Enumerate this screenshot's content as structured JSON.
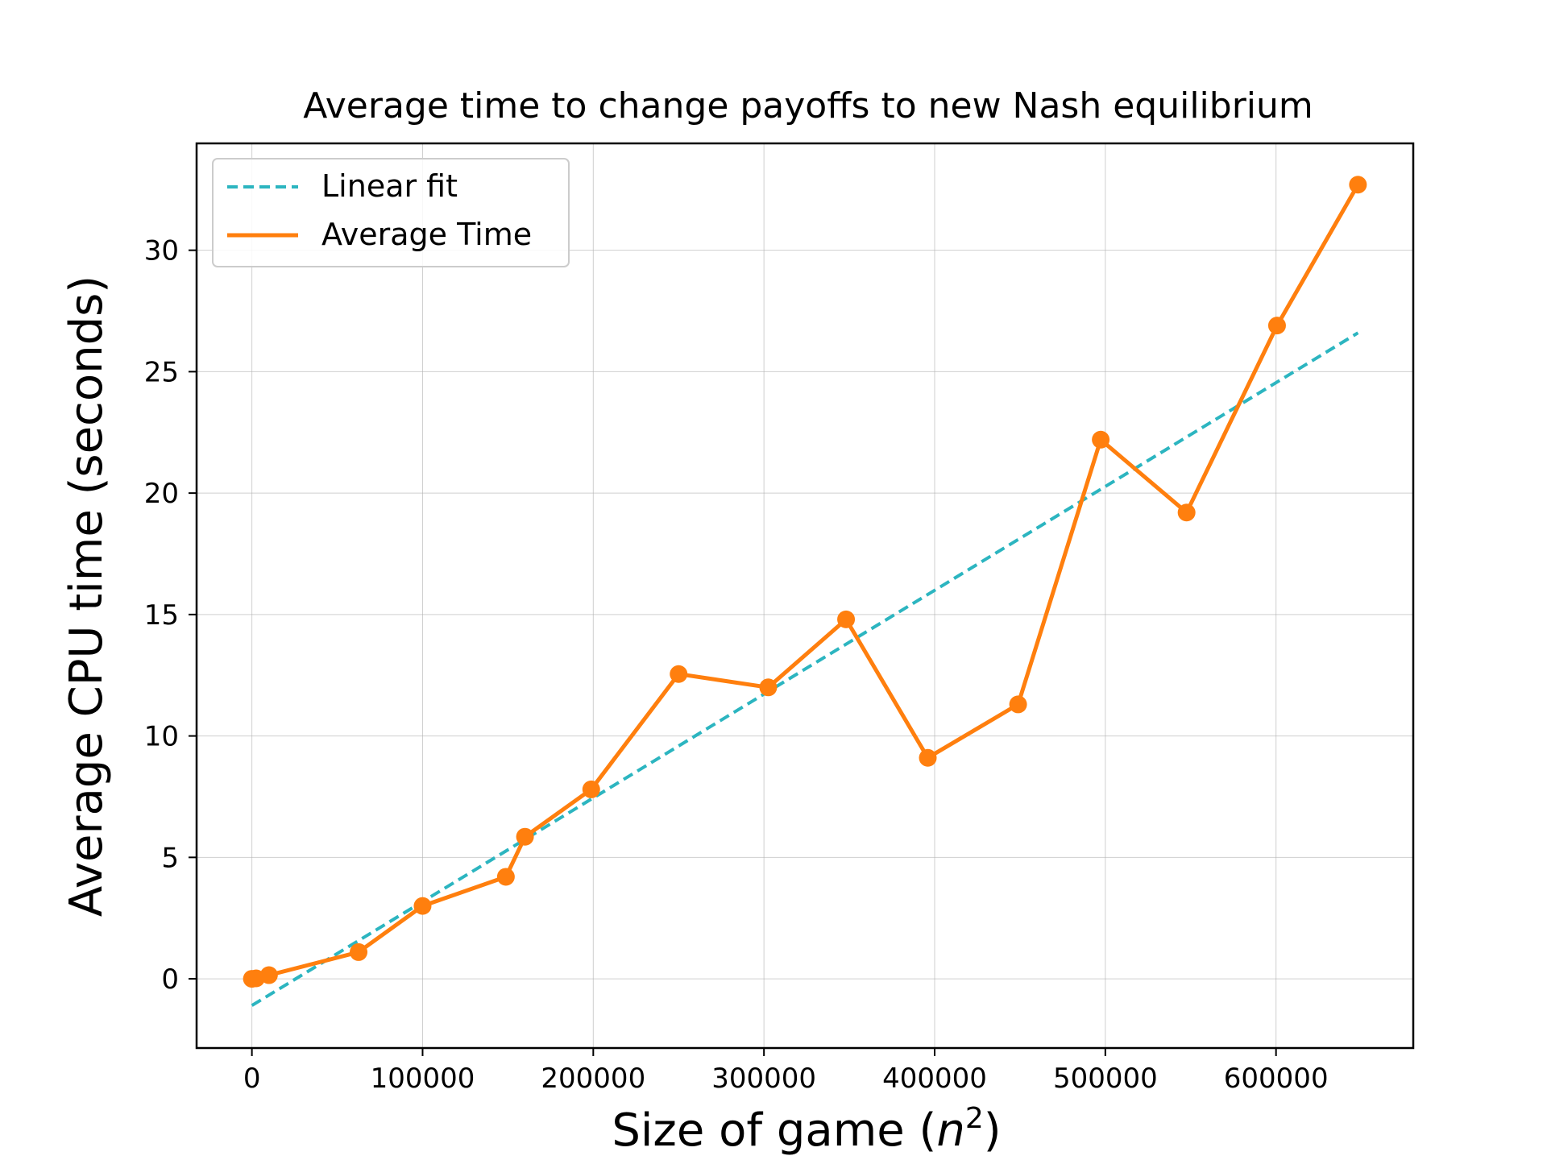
{
  "chart_data": {
    "type": "line",
    "title": "Average time to change payoffs to new Nash equilibrium",
    "xlabel": "Size of game",
    "xlabel_math_base": "n",
    "xlabel_math_exp": "2",
    "ylabel": "Average CPU time (seconds)",
    "xlim": [
      -32400,
      680400
    ],
    "ylim": [
      -2.85,
      34.4
    ],
    "x_ticks": [
      0,
      100000,
      200000,
      300000,
      400000,
      500000,
      600000
    ],
    "x_tick_labels": [
      "0",
      "100000",
      "200000",
      "300000",
      "400000",
      "500000",
      "600000"
    ],
    "y_ticks": [
      0,
      5,
      10,
      15,
      20,
      25,
      30
    ],
    "y_tick_labels": [
      "0",
      "5",
      "10",
      "15",
      "20",
      "25",
      "30"
    ],
    "grid": true,
    "legend_position": "top-left",
    "series": [
      {
        "name": "Linear fit",
        "style": "dashed",
        "color": "#2cb5c0",
        "x": [
          0,
          648000
        ],
        "y": [
          -1.1,
          26.6
        ]
      },
      {
        "name": "Average Time",
        "style": "solid",
        "markers": true,
        "color": "#ff7f0e",
        "x": [
          0,
          2500,
          10000,
          62500,
          100000,
          148800,
          160000,
          198800,
          250000,
          302500,
          348100,
          396000,
          448900,
          497300,
          547600,
          600600,
          648000
        ],
        "y": [
          0.0,
          0.02,
          0.15,
          1.1,
          3.0,
          4.2,
          5.85,
          7.8,
          12.55,
          12.0,
          14.8,
          9.1,
          11.3,
          22.2,
          19.2,
          26.9,
          32.7
        ]
      }
    ]
  }
}
